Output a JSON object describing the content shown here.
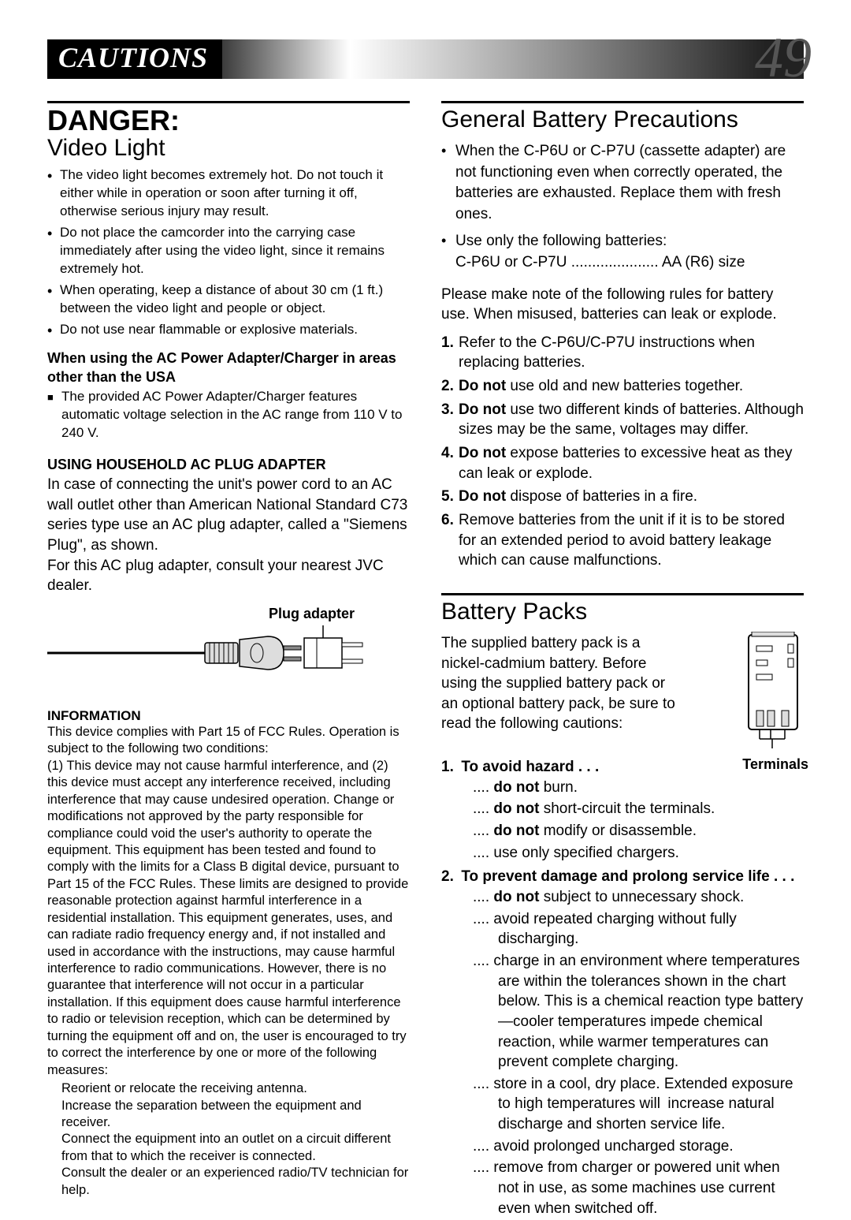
{
  "header": {
    "title": "CAUTIONS",
    "page": "49"
  },
  "left": {
    "danger": "DANGER:",
    "videoLight": "Video Light",
    "vl_bullets": [
      "The video light becomes extremely hot. Do not touch it either while in operation or soon after turning it off, otherwise serious injury may result.",
      "Do not place the camcorder into the carrying case immediately after using the video light, since it remains extremely hot.",
      "When operating, keep a distance of about 30 cm (1 ft.) between the video light and people or object.",
      "Do not use near flammable or explosive materials."
    ],
    "ac_other_title": "When using the AC Power Adapter/Charger in areas other than the USA",
    "ac_other_item": "The provided AC Power Adapter/Charger features automatic voltage selection in the AC range from 110 V to 240 V.",
    "household_title": "USING HOUSEHOLD AC PLUG ADAPTER",
    "household_body": "In case of connecting the unit's power cord to an AC wall outlet other than American National Standard C73 series type use an AC plug adapter, called a \"Siemens Plug\", as shown.",
    "household_body2": "For this AC plug adapter, consult your nearest JVC dealer.",
    "plug_label": "Plug adapter",
    "info_title": "INFORMATION",
    "info_p1": "This device complies with Part 15 of FCC Rules. Operation is subject to the following two conditions:",
    "info_p2": "(1) This device may not cause harmful interference, and (2) this device must accept any interference received, including interference that may cause undesired operation. Change or modifications not approved by the party responsible for compliance could void the user's authority to operate the equipment. This equipment has been tested and found to comply with the limits for a Class B digital device, pursuant to Part 15 of the FCC Rules. These limits are designed to provide reasonable protection against harmful interference in a residential installation. This equipment generates, uses, and can radiate radio frequency energy and, if not installed and used in accordance with the instructions, may cause harmful interference to radio communications. However, there is no guarantee that interference will not occur in a particular installation. If this equipment does cause harmful interference to radio or television reception, which can be determined by turning the equipment off and on, the user is encouraged to try to correct the interference by one or more of the following measures:",
    "info_measures": [
      "Reorient or relocate the receiving antenna.",
      "Increase the separation between the equipment and receiver.",
      "Connect the equipment into an outlet on a circuit different from that to which the receiver is connected.",
      "Consult the dealer or an experienced radio/TV technician for help."
    ]
  },
  "right": {
    "gbp_title": "General Battery Precautions",
    "gbp_bullets": [
      "When the C-P6U or C-P7U (cassette adapter) are not functioning even when correctly operated, the batteries are exhausted. Replace them with fresh ones.",
      "Use only the following batteries:"
    ],
    "gbp_battery_line": "C-P6U or C-P7U ..................... AA (R6) size",
    "gbp_note": "Please make note of the following rules for battery use. When misused, batteries can leak or explode.",
    "gbp_rules": [
      "Refer to the C-P6U/C-P7U instructions when replacing batteries.",
      "<b>Do not</b> use old and new batteries together.",
      "<b>Do not</b> use two different kinds of batteries. Although sizes may be the same, voltages may differ.",
      "<b>Do not</b> expose batteries to excessive heat as they can leak or explode.",
      "<b>Do not</b> dispose of batteries in a fire.",
      "Remove batteries from the unit if it is to be stored for an extended period to avoid battery leakage which can cause malfunctions."
    ],
    "bp_title": "Battery Packs",
    "bp_intro": "The supplied battery pack is a nickel-cadmium battery. Before using the supplied battery pack or an optional battery pack, be sure to read the following cautions:",
    "terminals": "Terminals",
    "hazard_title": "1. To avoid hazard . . .",
    "hazard_items": [
      ".... <b>do not</b> burn.",
      ".... <b>do not</b> short-circuit the terminals.",
      ".... <b>do not</b> modify or disassemble.",
      ".... use only specified chargers."
    ],
    "prevent_title": "2. To prevent damage and prolong service life . . .",
    "prevent_items": [
      ".... <b>do not</b> subject to unnecessary shock.",
      ".... avoid repeated charging without fully discharging.",
      ".... charge in an environment where temperatures are within the tolerances shown in the chart below. This is a chemical reaction type battery—cooler temperatures impede chemical reaction, while warmer temperatures can prevent complete charging.",
      ".... store in a cool, dry place. Extended exposure to high temperatures will increase natural discharge and shorten service life.",
      ".... avoid prolonged uncharged storage.",
      ".... remove from charger or powered unit when not in use, as some machines use current even when switched off."
    ]
  }
}
